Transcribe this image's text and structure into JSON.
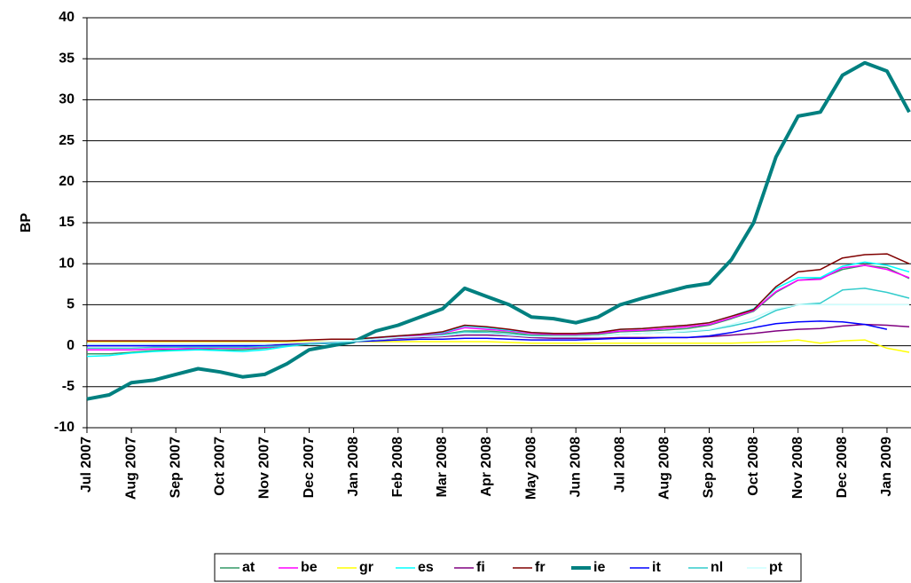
{
  "chart_data": {
    "type": "line",
    "y_label": "BP",
    "x": [
      0,
      0.5,
      1,
      1.5,
      2,
      2.5,
      3,
      3.5,
      4,
      4.5,
      5,
      5.5,
      6,
      6.5,
      7,
      7.5,
      8,
      8.5,
      9,
      9.5,
      10,
      10.5,
      11,
      11.5,
      12,
      12.5,
      13,
      13.5,
      14,
      14.5,
      15,
      15.5,
      16,
      16.5,
      17,
      17.5,
      18,
      18.5
    ],
    "xlim": [
      0,
      18.54
    ],
    "xticks": [
      {
        "value": 0,
        "label": "Jul 2007"
      },
      {
        "value": 1,
        "label": "Aug 2007"
      },
      {
        "value": 2,
        "label": "Sep 2007"
      },
      {
        "value": 3,
        "label": "Oct 2007"
      },
      {
        "value": 4,
        "label": "Nov 2007"
      },
      {
        "value": 5,
        "label": "Dec 2007"
      },
      {
        "value": 6,
        "label": "Jan 2008"
      },
      {
        "value": 7,
        "label": "Feb 2008"
      },
      {
        "value": 8,
        "label": "Mar 2008"
      },
      {
        "value": 9,
        "label": "Apr 2008"
      },
      {
        "value": 10,
        "label": "May 2008"
      },
      {
        "value": 11,
        "label": "Jun 2008"
      },
      {
        "value": 12,
        "label": "Jul 2008"
      },
      {
        "value": 13,
        "label": "Aug 2008"
      },
      {
        "value": 14,
        "label": "Sep 2008"
      },
      {
        "value": 15,
        "label": "Oct 2008"
      },
      {
        "value": 16,
        "label": "Nov 2008"
      },
      {
        "value": 17,
        "label": "Dec 2008"
      },
      {
        "value": 18,
        "label": "Jan 2009"
      }
    ],
    "ylim": [
      -10,
      40
    ],
    "yticks": [
      -10,
      -5,
      0,
      5,
      10,
      15,
      20,
      25,
      30,
      35,
      40
    ],
    "grid": true,
    "legend": "bottom",
    "series": [
      {
        "name": "at",
        "color": "#339966",
        "line_width": 1.5,
        "values": [
          -1,
          -1,
          -0.8,
          -0.6,
          -0.5,
          -0.4,
          -0.5,
          -0.5,
          -0.3,
          0,
          0.2,
          0.4,
          0.6,
          0.9,
          1.1,
          1.2,
          1.4,
          1.8,
          1.8,
          1.6,
          1.3,
          1.3,
          1.3,
          1.4,
          1.7,
          1.8,
          1.9,
          2.1,
          2.5,
          3.3,
          4.2,
          6.5,
          8,
          8.2,
          9.3,
          9.8,
          9.5,
          8.2
        ]
      },
      {
        "name": "be",
        "color": "#ff00ff",
        "line_width": 1.5,
        "values": [
          -0.5,
          -0.5,
          -0.5,
          -0.4,
          -0.4,
          -0.3,
          -0.3,
          -0.3,
          -0.2,
          0,
          0.3,
          0.4,
          0.6,
          0.9,
          1.1,
          1.3,
          1.5,
          2.2,
          2,
          1.8,
          1.5,
          1.4,
          1.4,
          1.5,
          1.8,
          1.9,
          2.1,
          2.3,
          2.6,
          3.4,
          4.3,
          6.6,
          8,
          8.1,
          9.5,
          9.8,
          9.3,
          8.3
        ]
      },
      {
        "name": "gr",
        "color": "#ffff00",
        "line_width": 1.5,
        "values": [
          0.5,
          0.5,
          0.5,
          0.5,
          0.5,
          0.5,
          0.5,
          0.5,
          0.5,
          0.5,
          0.5,
          0.5,
          0.5,
          0.5,
          0.5,
          0.5,
          0.5,
          0.5,
          0.5,
          0.4,
          0.3,
          0.3,
          0.3,
          0.3,
          0.3,
          0.3,
          0.3,
          0.3,
          0.3,
          0.3,
          0.4,
          0.5,
          0.7,
          0.3,
          0.6,
          0.7,
          -0.3,
          -0.8
        ]
      },
      {
        "name": "es",
        "color": "#00ffff",
        "line_width": 1.5,
        "values": [
          -1.3,
          -1.2,
          -0.9,
          -0.7,
          -0.6,
          -0.5,
          -0.6,
          -0.7,
          -0.5,
          -0.1,
          0.2,
          0.4,
          0.6,
          1,
          1.2,
          1.4,
          1.6,
          2.4,
          2.2,
          1.9,
          1.6,
          1.5,
          1.5,
          1.6,
          2,
          2.1,
          2.3,
          2.5,
          2.8,
          3.6,
          4.5,
          7,
          8.3,
          8.3,
          9.7,
          10.2,
          9.8,
          9
        ]
      },
      {
        "name": "fi",
        "color": "#800080",
        "line_width": 1.5,
        "values": [
          0,
          0,
          0,
          0,
          0,
          0,
          0,
          0,
          0,
          0.2,
          0.3,
          0.4,
          0.6,
          0.8,
          0.9,
          1,
          1.1,
          1.3,
          1.3,
          1.2,
          1,
          0.9,
          0.9,
          0.9,
          1,
          1,
          1,
          1,
          1.1,
          1.3,
          1.5,
          1.8,
          2,
          2.1,
          2.4,
          2.6,
          2.5,
          2.3
        ]
      },
      {
        "name": "fr",
        "color": "#800000",
        "line_width": 1.5,
        "values": [
          0.6,
          0.6,
          0.6,
          0.6,
          0.6,
          0.6,
          0.6,
          0.6,
          0.6,
          0.6,
          0.7,
          0.8,
          0.8,
          1,
          1.2,
          1.4,
          1.7,
          2.5,
          2.3,
          2,
          1.6,
          1.5,
          1.5,
          1.6,
          2,
          2.1,
          2.3,
          2.5,
          2.8,
          3.6,
          4.4,
          7.2,
          9,
          9.3,
          10.7,
          11.1,
          11.2,
          10
        ]
      },
      {
        "name": "ie",
        "color": "#008080",
        "line_width": 4,
        "values": [
          -6.5,
          -6,
          -4.5,
          -4.2,
          -3.5,
          -2.8,
          -3.2,
          -3.8,
          -3.5,
          -2.2,
          -0.5,
          0,
          0.5,
          1.8,
          2.5,
          3.5,
          4.5,
          7,
          6,
          5,
          3.5,
          3.3,
          2.8,
          3.5,
          5,
          5.8,
          6.5,
          7.2,
          7.6,
          10.5,
          15,
          23,
          28,
          28.5,
          33,
          34.5,
          33.5,
          28.5
        ]
      },
      {
        "name": "it",
        "color": "#0000ff",
        "line_width": 1.5,
        "values": [
          0,
          0,
          0,
          0,
          0,
          0,
          0,
          0,
          0,
          0.1,
          0.2,
          0.3,
          0.5,
          0.6,
          0.7,
          0.8,
          0.8,
          0.9,
          0.9,
          0.8,
          0.7,
          0.7,
          0.7,
          0.8,
          0.9,
          0.9,
          1,
          1,
          1.2,
          1.6,
          2.2,
          2.7,
          2.9,
          3,
          2.9,
          2.6,
          2,
          null
        ]
      },
      {
        "name": "nl",
        "color": "#33cccc",
        "line_width": 1.5,
        "values": [
          -0.3,
          -0.3,
          -0.3,
          -0.2,
          -0.2,
          -0.2,
          -0.2,
          -0.2,
          -0.1,
          0,
          0.2,
          0.3,
          0.5,
          0.8,
          1,
          1.1,
          1.3,
          1.7,
          1.6,
          1.4,
          1.2,
          1.1,
          1.1,
          1.2,
          1.4,
          1.5,
          1.6,
          1.7,
          1.9,
          2.4,
          3,
          4.3,
          5,
          5.2,
          6.8,
          7,
          6.5,
          5.8
        ]
      },
      {
        "name": "pt",
        "color": "#ccffff",
        "line_width": 1.5,
        "values": [
          0.2,
          0.2,
          0.2,
          0.2,
          0.2,
          0.2,
          0.2,
          0.2,
          0.2,
          0.3,
          0.4,
          0.5,
          0.6,
          0.8,
          1,
          1.1,
          1.2,
          1.5,
          1.5,
          1.3,
          1.1,
          1.1,
          1.1,
          1.2,
          1.4,
          1.5,
          1.6,
          1.8,
          2,
          2.6,
          3.4,
          4.5,
          5,
          5,
          5,
          5,
          5,
          5
        ]
      }
    ]
  }
}
